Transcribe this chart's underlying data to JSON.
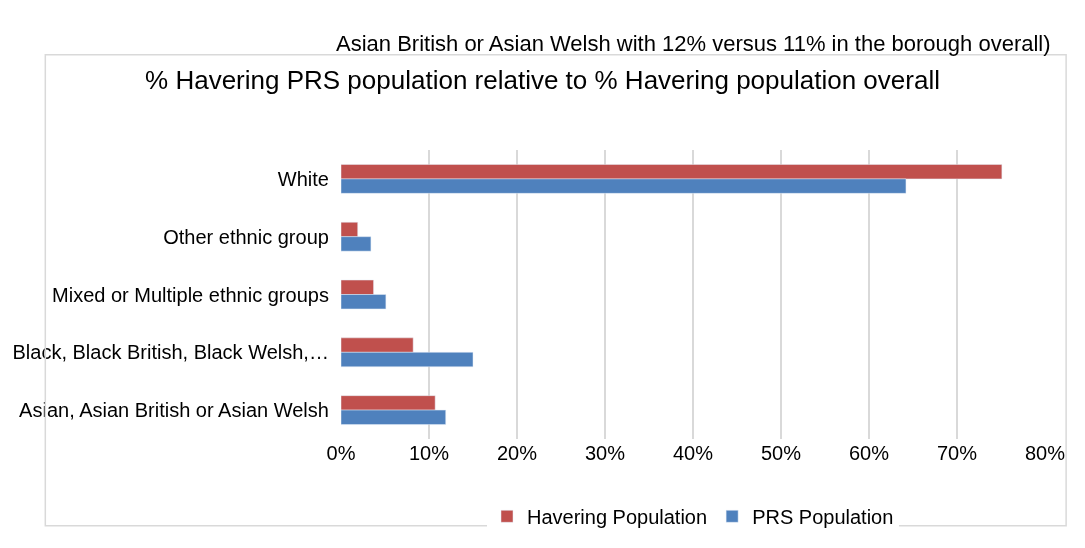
{
  "chart_data": {
    "type": "bar",
    "orientation": "horizontal",
    "title": "% Havering PRS population relative to % Havering population overall",
    "annotations": [
      "Asian British or Asian Welsh with 12% versus 11% in the borough overall)"
    ],
    "categories": [
      "White",
      "Other ethnic group",
      "Mixed or Multiple ethnic groups",
      "Black, Black British, Black Welsh,…",
      "Asian, Asian British or Asian Welsh"
    ],
    "series": [
      {
        "name": "Havering Population",
        "color": "#c0504d",
        "values": [
          75.1,
          1.9,
          3.7,
          8.2,
          10.7
        ]
      },
      {
        "name": "PRS Population",
        "color": "#4f81bd",
        "values": [
          64.2,
          3.4,
          5.1,
          15.0,
          11.9
        ]
      }
    ],
    "xlim": [
      0,
      80
    ],
    "xticks": [
      {
        "value": 0,
        "label": "0%"
      },
      {
        "value": 10,
        "label": "10%"
      },
      {
        "value": 20,
        "label": "20%"
      },
      {
        "value": 30,
        "label": "30%"
      },
      {
        "value": 40,
        "label": "40%"
      },
      {
        "value": 50,
        "label": "50%"
      },
      {
        "value": 60,
        "label": "60%"
      },
      {
        "value": 70,
        "label": "70%"
      },
      {
        "value": 80,
        "label": "80%"
      }
    ],
    "grid": "x",
    "legend": "bottom"
  }
}
